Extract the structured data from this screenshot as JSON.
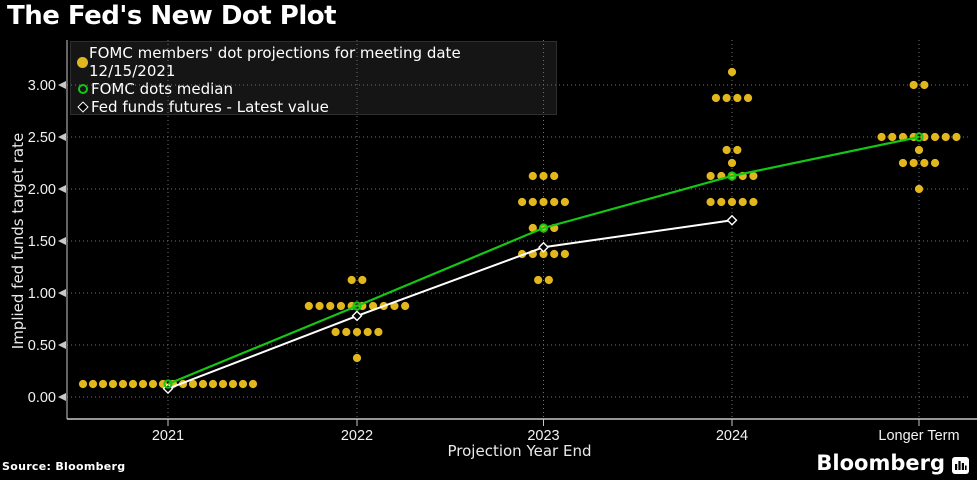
{
  "title": "The Fed's New Dot Plot",
  "source": "Source: Bloomberg",
  "brand": {
    "logo_text": "Bloomberg",
    "logo_icon": "bloomberg-terminal-icon"
  },
  "colors": {
    "background": "#000000",
    "dots": "#E2B71D",
    "median_line": "#14C714",
    "futures_line": "#FFFFFF",
    "grid": "#6f6f6f",
    "axis": "#c8c8c8",
    "text": "#f2f2f2"
  },
  "legend": {
    "items": [
      {
        "marker": "filled-circle",
        "color": "#E2B71D",
        "label": "FOMC members' dot projections for meeting date 12/15/2021"
      },
      {
        "marker": "open-circle",
        "color": "#14C714",
        "label": "FOMC dots median"
      },
      {
        "marker": "open-diamond",
        "color": "#FFFFFF",
        "label": "Fed funds futures - Latest value"
      }
    ]
  },
  "chart_data": {
    "type": "scatter",
    "subtype": "fomc-dot-plot",
    "title": "The Fed's New Dot Plot",
    "xlabel": "Projection Year End",
    "ylabel": "Implied fed funds target rate",
    "categories": [
      "2021",
      "2022",
      "2023",
      "2024",
      "Longer Term"
    ],
    "yticks": [
      0.0,
      0.5,
      1.0,
      1.5,
      2.0,
      2.5,
      3.0
    ],
    "ytick_labels": [
      "0.00",
      "0.50",
      "1.00",
      "1.50",
      "2.00",
      "2.50",
      "3.00"
    ],
    "ylim": [
      -0.21,
      3.43
    ],
    "grid": true,
    "legend_position": "top-left",
    "series": [
      {
        "name": "FOMC members' dot projections for meeting date 12/15/2021",
        "type": "dot-distribution",
        "color": "#E2B71D",
        "distributions": [
          {
            "category": "2021",
            "levels": [
              {
                "rate": 0.125,
                "count": 18
              }
            ]
          },
          {
            "category": "2022",
            "levels": [
              {
                "rate": 0.375,
                "count": 1
              },
              {
                "rate": 0.625,
                "count": 5
              },
              {
                "rate": 0.875,
                "count": 10
              },
              {
                "rate": 1.125,
                "count": 2
              }
            ]
          },
          {
            "category": "2023",
            "levels": [
              {
                "rate": 1.125,
                "count": 2
              },
              {
                "rate": 1.375,
                "count": 5
              },
              {
                "rate": 1.625,
                "count": 3
              },
              {
                "rate": 1.875,
                "count": 5
              },
              {
                "rate": 2.125,
                "count": 3
              }
            ]
          },
          {
            "category": "2024",
            "levels": [
              {
                "rate": 1.875,
                "count": 5
              },
              {
                "rate": 2.125,
                "count": 5
              },
              {
                "rate": 2.25,
                "count": 1
              },
              {
                "rate": 2.375,
                "count": 2
              },
              {
                "rate": 2.875,
                "count": 4
              },
              {
                "rate": 3.125,
                "count": 1
              }
            ]
          },
          {
            "category": "Longer Term",
            "levels": [
              {
                "rate": 2.0,
                "count": 1
              },
              {
                "rate": 2.25,
                "count": 4
              },
              {
                "rate": 2.375,
                "count": 1
              },
              {
                "rate": 2.5,
                "count": 8
              },
              {
                "rate": 3.0,
                "count": 2
              }
            ]
          }
        ]
      },
      {
        "name": "FOMC dots median",
        "type": "line",
        "marker": "open-circle",
        "color": "#14C714",
        "categories": [
          "2021",
          "2022",
          "2023",
          "2024",
          "Longer Term"
        ],
        "values": [
          0.125,
          0.875,
          1.625,
          2.125,
          2.5
        ]
      },
      {
        "name": "Fed funds futures - Latest value",
        "type": "line",
        "marker": "open-diamond",
        "color": "#FFFFFF",
        "categories": [
          "2021",
          "2022",
          "2023",
          "2024"
        ],
        "values": [
          0.08,
          0.78,
          1.44,
          1.7
        ]
      }
    ]
  }
}
